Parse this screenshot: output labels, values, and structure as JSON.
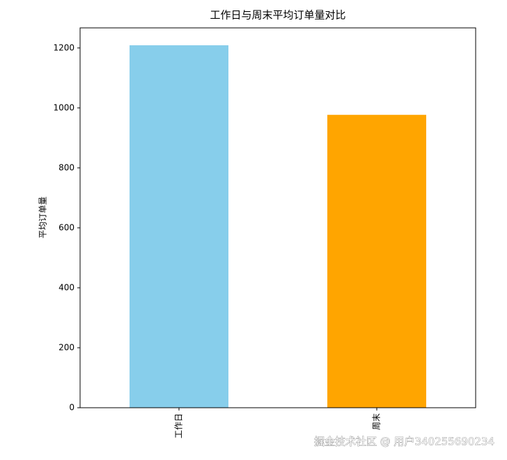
{
  "chart_data": {
    "type": "bar",
    "title": "工作日与周末平均订单量对比",
    "y_label": "平均订单量",
    "categories": [
      "工作日",
      "周末"
    ],
    "values": [
      1209,
      977
    ],
    "colors": [
      "#87ceeb",
      "#ffa500"
    ],
    "ylim": [
      0,
      1267
    ],
    "yticks": [
      0,
      200,
      400,
      600,
      800,
      1000,
      1200
    ],
    "grid": false
  },
  "watermark": "掘金技术社区 @ 用户340255690234"
}
